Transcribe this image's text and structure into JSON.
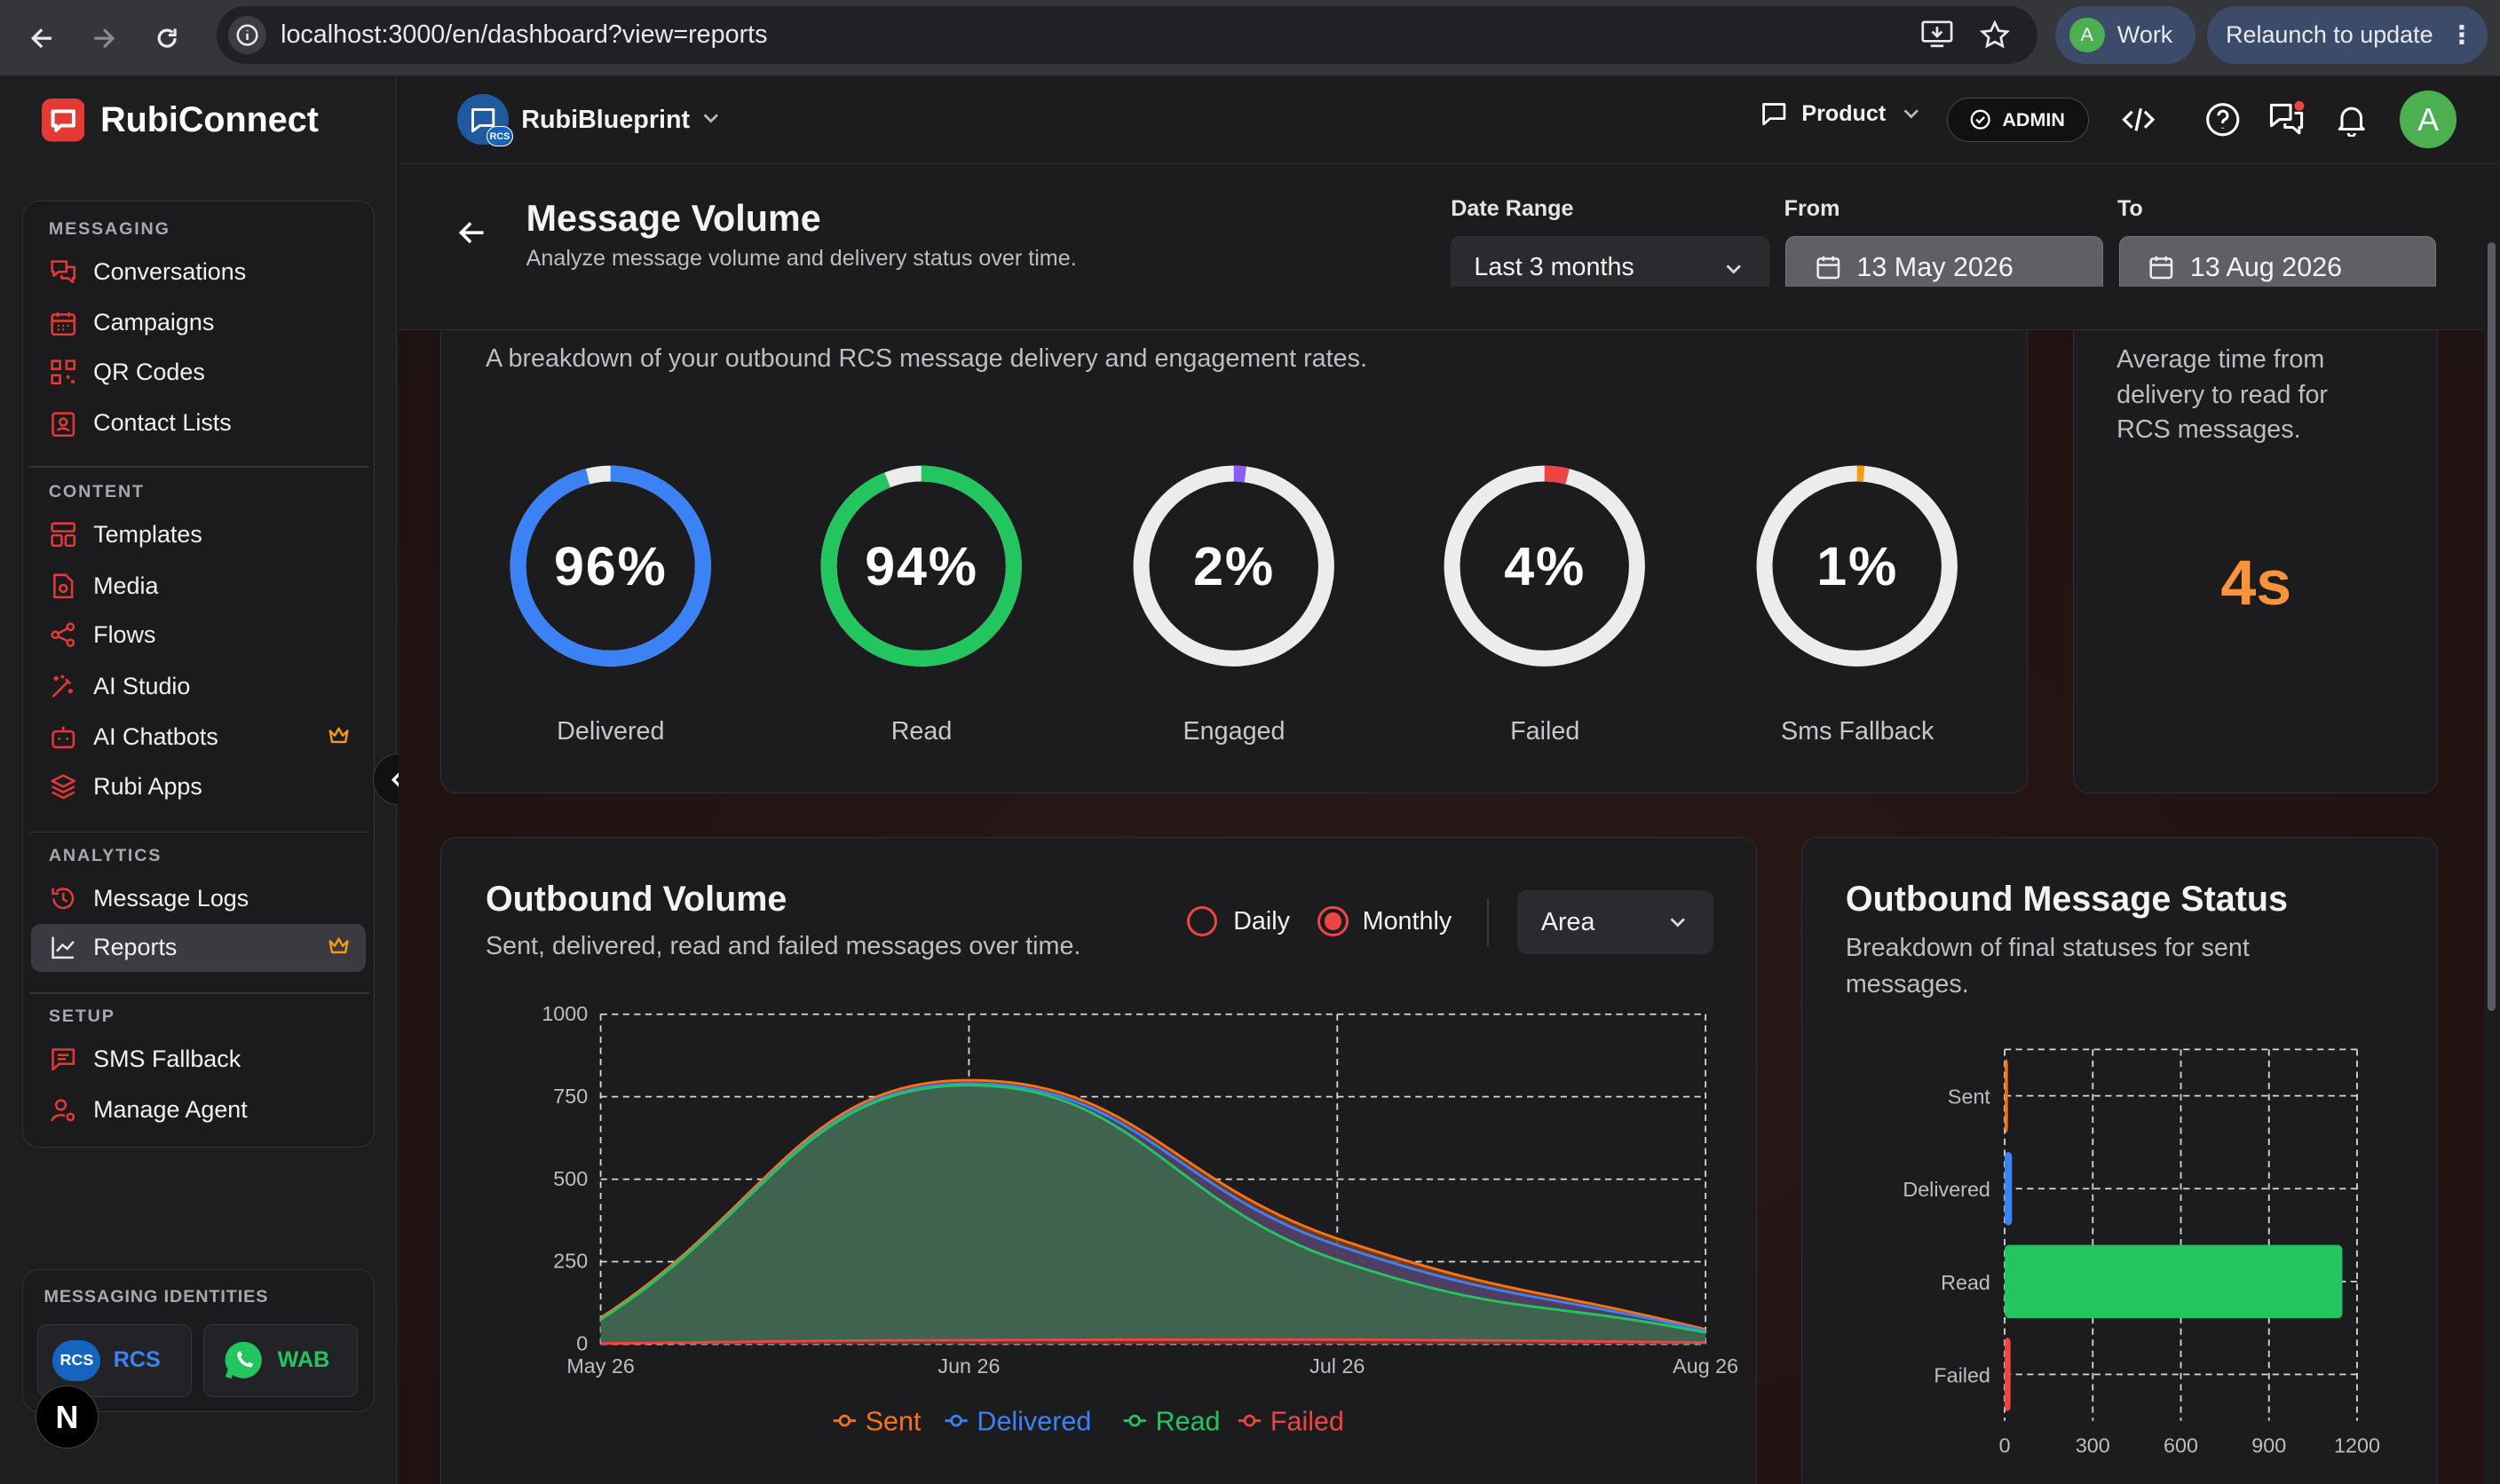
{
  "browser": {
    "url": "localhost:3000/en/dashboard?view=reports",
    "profile_initial": "A",
    "profile_label": "Work",
    "relaunch_label": "Relaunch to update"
  },
  "brand": {
    "name": "RubiConnect"
  },
  "sidebar": {
    "sections": [
      {
        "title": "MESSAGING",
        "items": [
          {
            "label": "Conversations",
            "icon": "chat-bubbles-icon"
          },
          {
            "label": "Campaigns",
            "icon": "calendar-icon"
          },
          {
            "label": "QR Codes",
            "icon": "qr-code-icon"
          },
          {
            "label": "Contact Lists",
            "icon": "contact-card-icon"
          }
        ]
      },
      {
        "title": "CONTENT",
        "items": [
          {
            "label": "Templates",
            "icon": "template-icon"
          },
          {
            "label": "Media",
            "icon": "media-file-icon"
          },
          {
            "label": "Flows",
            "icon": "share-nodes-icon"
          },
          {
            "label": "AI Studio",
            "icon": "magic-wand-icon"
          },
          {
            "label": "AI Chatbots",
            "icon": "bot-icon",
            "premium": true
          }
        ]
      },
      {
        "title": "",
        "items": [
          {
            "label": "Rubi Apps",
            "icon": "layers-icon"
          }
        ]
      },
      {
        "title": "ANALYTICS",
        "items": [
          {
            "label": "Message Logs",
            "icon": "history-icon"
          },
          {
            "label": "Reports",
            "icon": "line-chart-icon",
            "premium": true,
            "active": true
          }
        ]
      },
      {
        "title": "SETUP",
        "items": [
          {
            "label": "SMS Fallback",
            "icon": "message-square-icon"
          },
          {
            "label": "Manage Agent",
            "icon": "user-settings-icon"
          }
        ]
      }
    ],
    "identities_title": "MESSAGING IDENTITIES",
    "identities": [
      {
        "label": "RCS",
        "badge": "RCS"
      },
      {
        "label": "WAB"
      }
    ]
  },
  "topbar": {
    "agent_name": "RubiBlueprint",
    "agent_badge": "RCS",
    "product_label": "Product",
    "admin_label": "ADMIN",
    "avatar_initial": "A"
  },
  "page": {
    "title": "Message Volume",
    "subtitle": "Analyze message volume and delivery status over time.",
    "date_range_label": "Date Range",
    "date_range_value": "Last 3 months",
    "from_label": "From",
    "from_value": "13 May 2026",
    "to_label": "To",
    "to_value": "13 Aug 2026"
  },
  "delivery_card": {
    "subtitle": "A breakdown of your outbound RCS message delivery and engagement rates.",
    "rings": [
      {
        "label": "Delivered",
        "display": "96%",
        "percent": 96,
        "color": "#3b82f6"
      },
      {
        "label": "Read",
        "display": "94%",
        "percent": 94,
        "color": "#22c55e"
      },
      {
        "label": "Engaged",
        "display": "2%",
        "percent": 2,
        "color": "#8b5cf6"
      },
      {
        "label": "Failed",
        "display": "4%",
        "percent": 4,
        "color": "#ef4444"
      },
      {
        "label": "Sms Fallback",
        "display": "1%",
        "percent": 1,
        "color": "#f59e0b"
      }
    ]
  },
  "read_time_card": {
    "description": "Average time from delivery to read for RCS messages.",
    "value": "4s",
    "value_color": "#fb923c"
  },
  "outbound_volume": {
    "title": "Outbound Volume",
    "subtitle": "Sent, delivered, read and failed messages over time.",
    "radio_daily": "Daily",
    "radio_monthly": "Monthly",
    "selected_granularity": "Monthly",
    "chart_type_select": "Area"
  },
  "outbound_status": {
    "title": "Outbound Message Status",
    "subtitle": "Breakdown of final statuses for sent messages."
  },
  "chart_data": [
    {
      "type": "area",
      "x": [
        "May 26",
        "Jun 26",
        "Jul 26",
        "Aug 26"
      ],
      "ylim": [
        0,
        1000
      ],
      "yticks": [
        0,
        250,
        500,
        750,
        1000
      ],
      "grid": true,
      "legend_position": "bottom",
      "series": [
        {
          "name": "Sent",
          "color": "#f97316",
          "values": [
            80,
            800,
            320,
            45
          ]
        },
        {
          "name": "Delivered",
          "color": "#3b82f6",
          "values": [
            75,
            790,
            300,
            40
          ]
        },
        {
          "name": "Read",
          "color": "#22c55e",
          "values": [
            75,
            785,
            255,
            35
          ]
        },
        {
          "name": "Failed",
          "color": "#ef4444",
          "values": [
            2,
            12,
            14,
            5
          ]
        }
      ]
    },
    {
      "type": "bar",
      "orientation": "horizontal",
      "categories": [
        "Sent",
        "Delivered",
        "Read",
        "Failed"
      ],
      "values": [
        0,
        25,
        1150,
        20
      ],
      "colors": [
        "#f97316",
        "#3b82f6",
        "#22c55e",
        "#ef4444"
      ],
      "xlim": [
        0,
        1200
      ],
      "xticks": [
        0,
        300,
        600,
        900,
        1200
      ],
      "grid": true
    }
  ]
}
